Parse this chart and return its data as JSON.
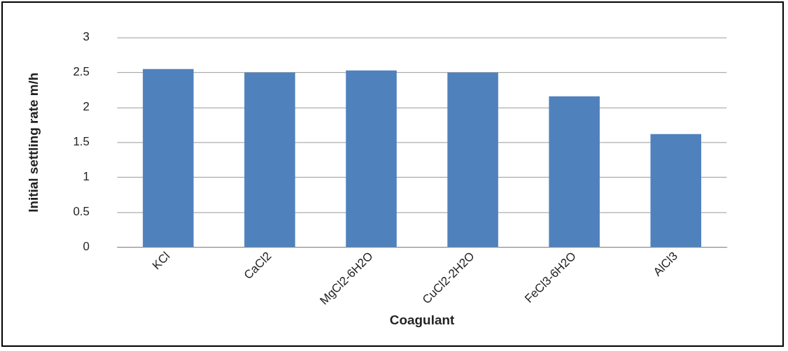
{
  "chart_data": {
    "type": "bar",
    "xlabel": "Coagulant",
    "ylabel": "Initial settling rate m/h",
    "categories": [
      "KCl",
      "CaCl2",
      "MgCl2-6H2O",
      "CuCl2-2H2O",
      "FeCl3-6H2O",
      "AlCl3"
    ],
    "values": [
      2.55,
      2.5,
      2.53,
      2.5,
      2.16,
      1.62
    ],
    "color": "#4f81bd",
    "ylim": [
      0,
      3
    ],
    "yticks": [
      0,
      0.5,
      1,
      1.5,
      2,
      2.5,
      3
    ],
    "grid": "y",
    "legend": false
  }
}
